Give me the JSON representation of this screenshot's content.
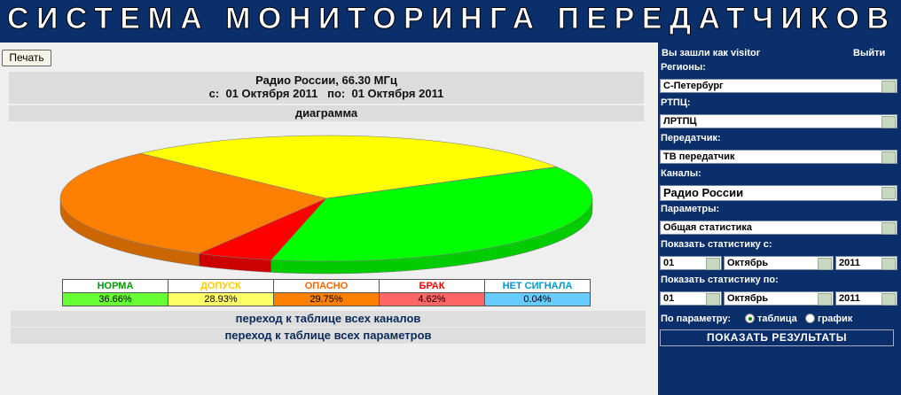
{
  "header": {
    "title": "СИСТЕМА МОНИТОРИНГА ПЕРЕДАТЧИКОВ"
  },
  "toolbar": {
    "print": "Печать"
  },
  "report": {
    "station": "Радио России, 66.30 МГц",
    "period": "с:  01 Октября 2011   по:  01 Октября 2011"
  },
  "chart_data": {
    "type": "pie",
    "title": "диаграмма",
    "categories": [
      "НОРМА",
      "ДОПУСК",
      "ОПАСНО",
      "БРАК",
      "НЕТ СИГНАЛА"
    ],
    "values": [
      36.66,
      28.93,
      29.75,
      4.62,
      0.04
    ],
    "value_labels": [
      "36.66%",
      "28.93%",
      "29.75%",
      "4.62%",
      "0.04%"
    ],
    "colors": [
      "#00ff00",
      "#ffff00",
      "#ff8000",
      "#ff0000",
      "#66ccff"
    ]
  },
  "links": [
    "переход к таблице всех каналов",
    "переход к таблице всех параметров"
  ],
  "sidebar": {
    "user": "Вы зашли как visitor",
    "logout": "Выйти",
    "fields": [
      {
        "label": "Регионы:",
        "value": "С-Петербург"
      },
      {
        "label": "РТПЦ:",
        "value": "ЛРТПЦ"
      },
      {
        "label": "Передатчик:",
        "value": "ТВ передатчик"
      },
      {
        "label": "Каналы:",
        "value": "Радио России"
      },
      {
        "label": "Параметры:",
        "value": "Общая статистика"
      }
    ],
    "periods": [
      {
        "label": "Показать статистику с:",
        "day": "01",
        "month": "Октябрь",
        "year": "2011"
      },
      {
        "label": "Показать статистику по:",
        "day": "01",
        "month": "Октябрь",
        "year": "2011"
      }
    ],
    "mode_label": "По параметру:",
    "options": [
      "таблица",
      "график"
    ],
    "submit": "ПОКАЗАТЬ РЕЗУЛЬТАТЫ"
  }
}
